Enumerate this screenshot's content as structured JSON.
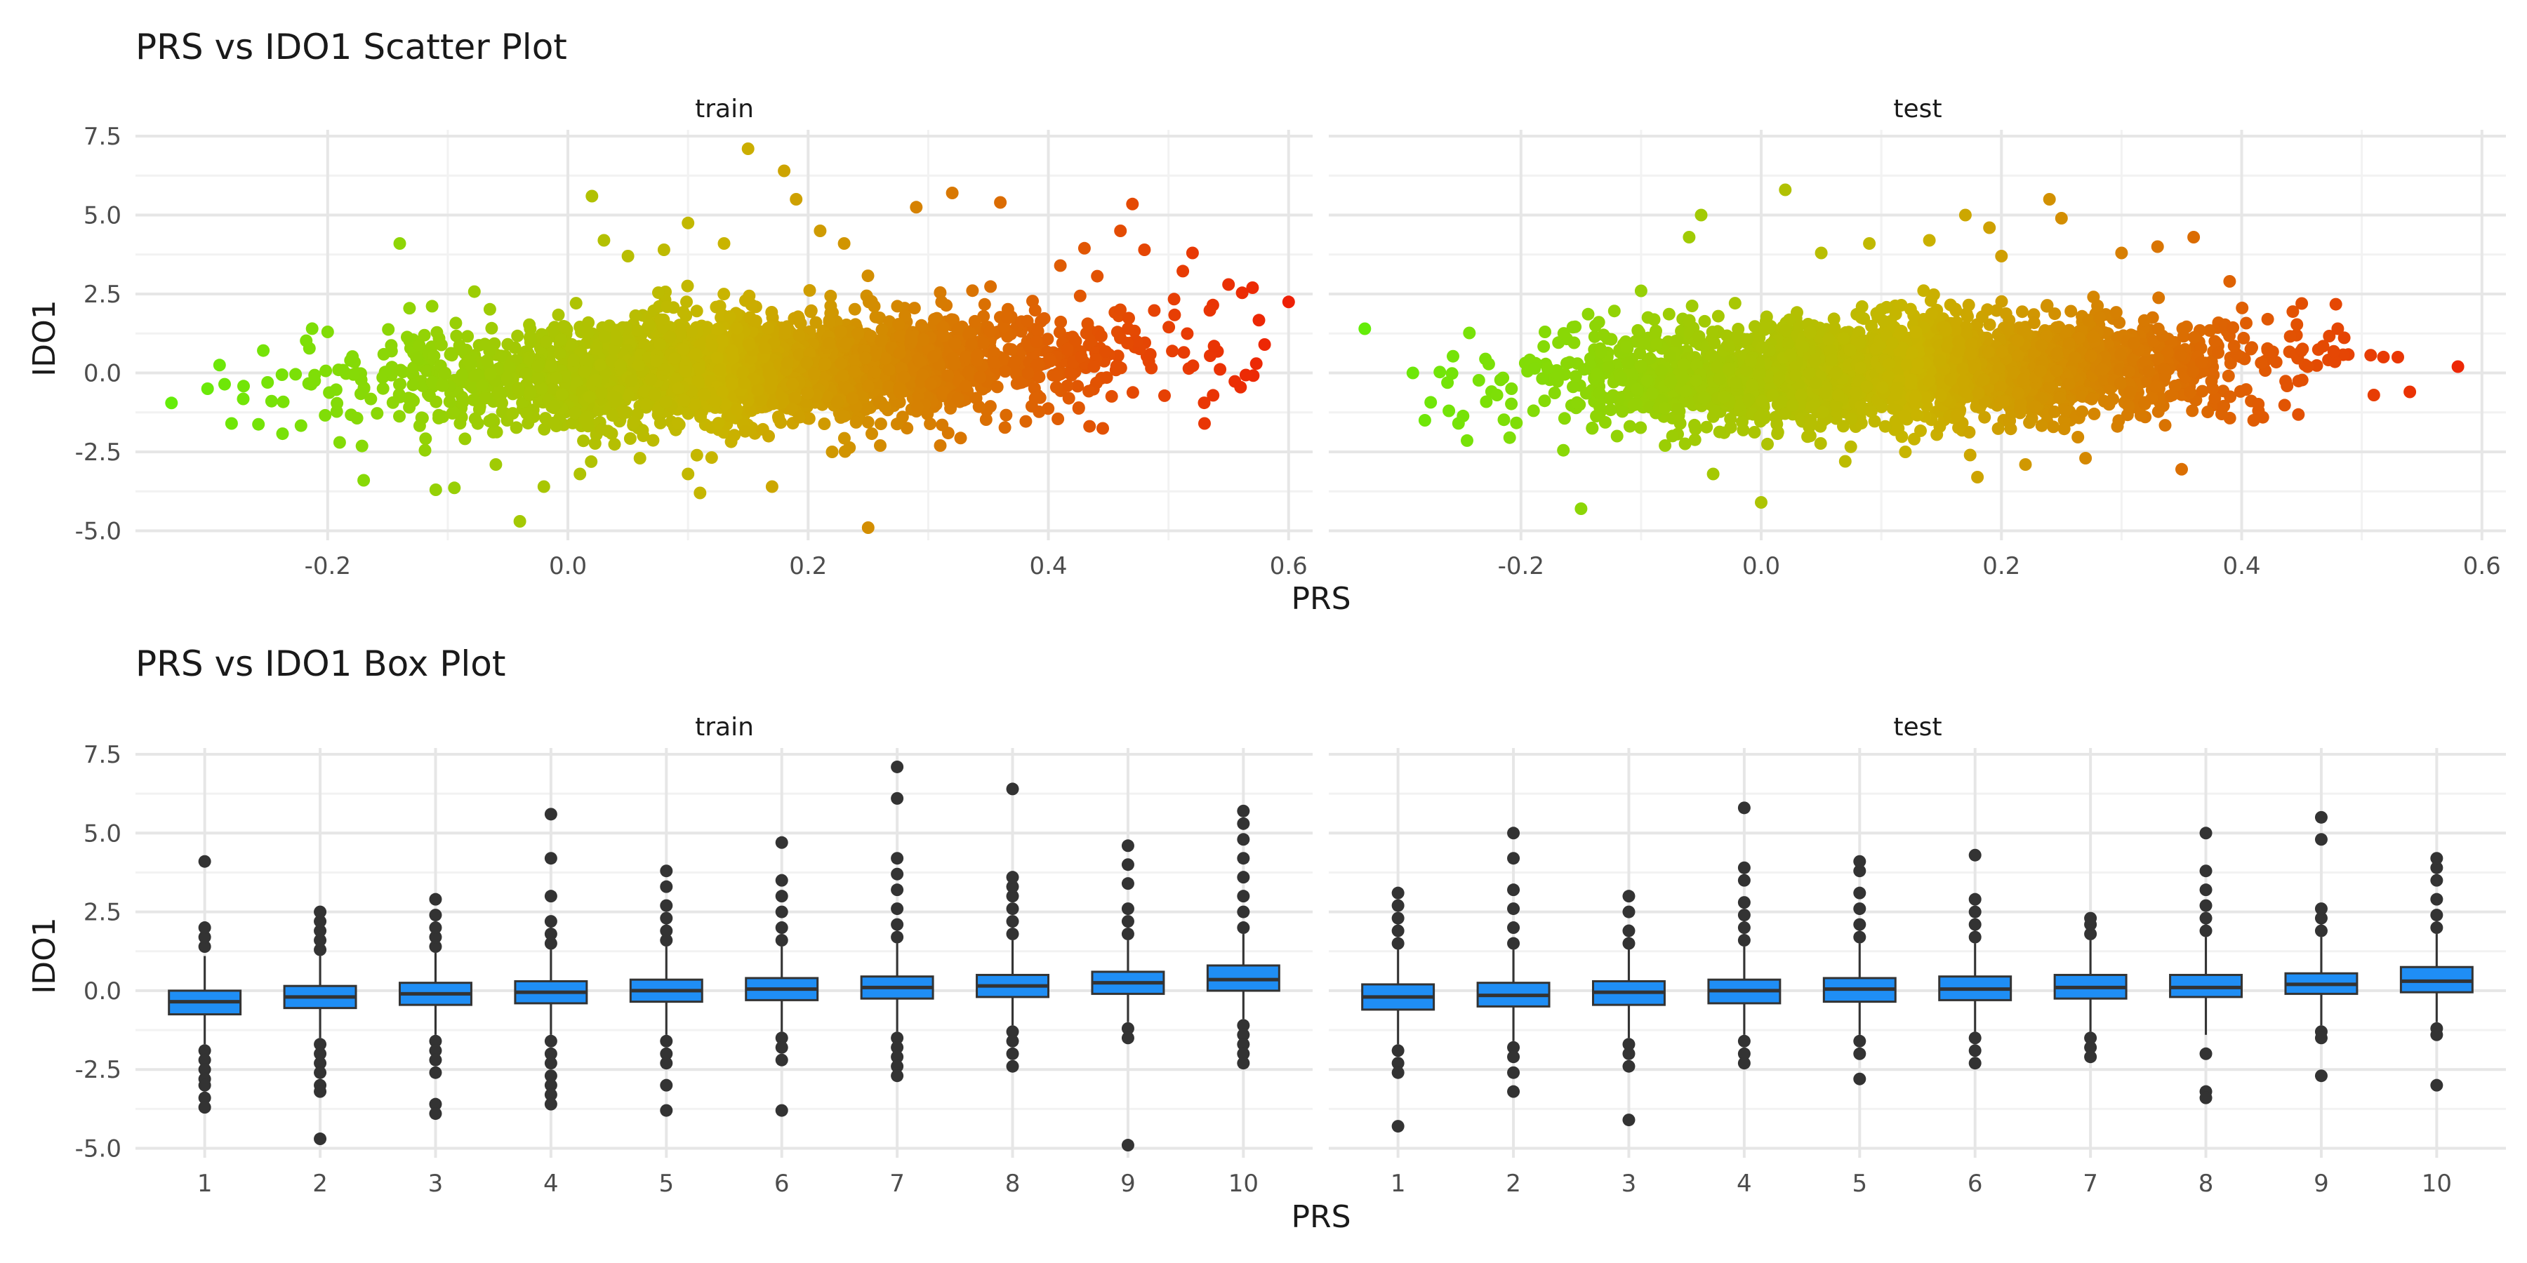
{
  "figure": {
    "sections": [
      {
        "title": "PRS vs IDO1 Scatter Plot",
        "xlabel": "PRS",
        "ylabel": "IDO1"
      },
      {
        "title": "PRS vs IDO1 Box Plot",
        "xlabel": "PRS",
        "ylabel": "IDO1"
      }
    ]
  },
  "colors": {
    "gradient_low": "#5ef00a",
    "gradient_mid": "#c9b400",
    "gradient_high": "#f01a05",
    "box_fill": "#1f8ef5",
    "box_stroke": "#333333",
    "outlier": "#333333",
    "grid_major": "#e6e6e6",
    "grid_minor": "#f2f2f2"
  },
  "chart_data": [
    {
      "type": "scatter",
      "title": "PRS vs IDO1 Scatter Plot",
      "xlabel": "PRS",
      "ylabel": "IDO1",
      "xlim": [
        -0.36,
        0.62
      ],
      "ylim": [
        -5.3,
        7.7
      ],
      "x_ticks": [
        -0.2,
        0.0,
        0.2,
        0.4,
        0.6
      ],
      "x_tick_labels": [
        "-0.2",
        "0.0",
        "0.2",
        "0.4",
        "0.6"
      ],
      "y_ticks": [
        -5.0,
        -2.5,
        0.0,
        2.5,
        5.0,
        7.5
      ],
      "y_tick_labels": [
        "-5.0",
        "-2.5",
        "0.0",
        "2.5",
        "5.0",
        "7.5"
      ],
      "color_by": "x",
      "grid": true,
      "legend": "none",
      "panels": [
        {
          "name": "train",
          "trend": {
            "intercept": -0.02,
            "slope": 1.1
          },
          "bulk": {
            "x_center": 0.15,
            "x_sd": 0.15,
            "x_min": -0.3,
            "x_max": 0.58,
            "y_sd": 0.85
          },
          "points": [
            [
              -0.33,
              -0.95
            ],
            [
              -0.3,
              -0.5
            ],
            [
              -0.29,
              0.25
            ],
            [
              -0.28,
              -1.6
            ],
            [
              -0.25,
              -0.3
            ],
            [
              -0.2,
              1.3
            ],
            [
              -0.19,
              -2.2
            ],
            [
              -0.17,
              -3.4
            ],
            [
              -0.14,
              4.1
            ],
            [
              -0.11,
              -3.7
            ],
            [
              -0.06,
              -2.9
            ],
            [
              -0.04,
              -4.7
            ],
            [
              -0.02,
              -3.6
            ],
            [
              0.01,
              -3.2
            ],
            [
              0.02,
              5.6
            ],
            [
              0.03,
              4.2
            ],
            [
              0.05,
              3.7
            ],
            [
              0.06,
              -2.7
            ],
            [
              0.08,
              3.9
            ],
            [
              0.1,
              -3.2
            ],
            [
              0.1,
              4.75
            ],
            [
              0.11,
              -3.8
            ],
            [
              0.13,
              4.1
            ],
            [
              0.15,
              7.1
            ],
            [
              0.17,
              -3.6
            ],
            [
              0.18,
              6.4
            ],
            [
              0.19,
              5.5
            ],
            [
              0.21,
              4.5
            ],
            [
              0.22,
              -2.5
            ],
            [
              0.23,
              4.1
            ],
            [
              0.25,
              -4.9
            ],
            [
              0.26,
              -2.3
            ],
            [
              0.29,
              5.25
            ],
            [
              0.31,
              -2.3
            ],
            [
              0.32,
              5.7
            ],
            [
              0.36,
              5.4
            ],
            [
              0.41,
              3.4
            ],
            [
              0.43,
              3.95
            ],
            [
              0.46,
              4.5
            ],
            [
              0.47,
              5.35
            ],
            [
              0.48,
              3.9
            ],
            [
              0.52,
              3.8
            ],
            [
              0.53,
              -1.6
            ],
            [
              0.55,
              2.8
            ],
            [
              0.56,
              -0.45
            ],
            [
              0.57,
              2.7
            ],
            [
              0.58,
              0.9
            ],
            [
              0.6,
              2.25
            ]
          ]
        },
        {
          "name": "test",
          "trend": {
            "intercept": -0.03,
            "slope": 0.85
          },
          "bulk": {
            "x_center": 0.12,
            "x_sd": 0.14,
            "x_min": -0.28,
            "x_max": 0.52,
            "y_sd": 0.8
          },
          "points": [
            [
              -0.33,
              1.4
            ],
            [
              -0.29,
              0.0
            ],
            [
              -0.28,
              -1.5
            ],
            [
              -0.26,
              -1.2
            ],
            [
              -0.22,
              -0.7
            ],
            [
              -0.18,
              1.3
            ],
            [
              -0.15,
              -4.3
            ],
            [
              -0.12,
              -2.0
            ],
            [
              -0.1,
              2.6
            ],
            [
              -0.08,
              -2.3
            ],
            [
              -0.06,
              4.3
            ],
            [
              -0.05,
              5.0
            ],
            [
              -0.04,
              -3.2
            ],
            [
              0.0,
              -4.1
            ],
            [
              0.02,
              5.8
            ],
            [
              0.05,
              3.8
            ],
            [
              0.07,
              -2.8
            ],
            [
              0.09,
              4.1
            ],
            [
              0.12,
              -2.5
            ],
            [
              0.14,
              4.2
            ],
            [
              0.17,
              5.0
            ],
            [
              0.18,
              -3.3
            ],
            [
              0.19,
              4.6
            ],
            [
              0.2,
              3.7
            ],
            [
              0.22,
              -2.9
            ],
            [
              0.24,
              5.5
            ],
            [
              0.25,
              4.9
            ],
            [
              0.27,
              -2.7
            ],
            [
              0.3,
              3.8
            ],
            [
              0.33,
              4.0
            ],
            [
              0.35,
              -3.05
            ],
            [
              0.36,
              4.3
            ],
            [
              0.39,
              2.9
            ],
            [
              0.41,
              -1.5
            ],
            [
              0.45,
              2.2
            ],
            [
              0.48,
              1.4
            ],
            [
              0.51,
              -0.7
            ],
            [
              0.53,
              0.5
            ],
            [
              0.54,
              -0.6
            ],
            [
              0.58,
              0.2
            ]
          ]
        }
      ]
    },
    {
      "type": "box",
      "title": "PRS vs IDO1 Box Plot",
      "xlabel": "PRS",
      "ylabel": "IDO1",
      "categories": [
        "1",
        "2",
        "3",
        "4",
        "5",
        "6",
        "7",
        "8",
        "9",
        "10"
      ],
      "ylim": [
        -5.3,
        7.7
      ],
      "y_ticks": [
        -5.0,
        -2.5,
        0.0,
        2.5,
        5.0,
        7.5
      ],
      "y_tick_labels": [
        "-5.0",
        "-2.5",
        "0.0",
        "2.5",
        "5.0",
        "7.5"
      ],
      "grid": true,
      "legend": "none",
      "panels": [
        {
          "name": "train",
          "boxes": [
            {
              "q1": -0.75,
              "median": -0.35,
              "q3": 0.0,
              "whisker_low": -1.7,
              "whisker_high": 1.1,
              "outliers": [
                -1.9,
                -2.2,
                -2.5,
                -2.8,
                -3.0,
                -3.4,
                -3.7,
                1.4,
                1.7,
                2.0,
                4.1
              ]
            },
            {
              "q1": -0.55,
              "median": -0.2,
              "q3": 0.15,
              "whisker_low": -1.5,
              "whisker_high": 1.1,
              "outliers": [
                -1.7,
                -2.0,
                -2.3,
                -2.6,
                -3.0,
                -3.2,
                -4.7,
                1.3,
                1.6,
                1.9,
                2.2,
                2.5
              ]
            },
            {
              "q1": -0.45,
              "median": -0.1,
              "q3": 0.25,
              "whisker_low": -1.4,
              "whisker_high": 1.2,
              "outliers": [
                -1.6,
                -1.9,
                -2.2,
                -2.6,
                -3.6,
                -3.9,
                1.4,
                1.7,
                2.0,
                2.4,
                2.9
              ]
            },
            {
              "q1": -0.4,
              "median": -0.05,
              "q3": 0.3,
              "whisker_low": -1.4,
              "whisker_high": 1.3,
              "outliers": [
                -1.6,
                -2.0,
                -2.3,
                -2.7,
                -3.0,
                -3.3,
                -3.6,
                1.5,
                1.8,
                2.2,
                3.0,
                4.2,
                5.6
              ]
            },
            {
              "q1": -0.35,
              "median": 0.0,
              "q3": 0.35,
              "whisker_low": -1.4,
              "whisker_high": 1.4,
              "outliers": [
                -1.6,
                -2.0,
                -2.3,
                -3.0,
                -3.8,
                1.6,
                1.9,
                2.3,
                2.7,
                3.3,
                3.8
              ]
            },
            {
              "q1": -0.3,
              "median": 0.05,
              "q3": 0.4,
              "whisker_low": -1.3,
              "whisker_high": 1.4,
              "outliers": [
                -1.5,
                -1.8,
                -2.2,
                -3.8,
                1.6,
                2.0,
                2.5,
                3.0,
                3.5,
                4.7
              ]
            },
            {
              "q1": -0.25,
              "median": 0.1,
              "q3": 0.45,
              "whisker_low": -1.3,
              "whisker_high": 1.5,
              "outliers": [
                -1.5,
                -1.8,
                -2.1,
                -2.4,
                -2.7,
                1.7,
                2.1,
                2.6,
                3.2,
                3.7,
                4.2,
                6.1,
                7.1
              ]
            },
            {
              "q1": -0.2,
              "median": 0.15,
              "q3": 0.5,
              "whisker_low": -1.1,
              "whisker_high": 1.6,
              "outliers": [
                -1.3,
                -1.6,
                -2.0,
                -2.4,
                1.8,
                2.2,
                2.6,
                3.0,
                3.3,
                3.6,
                6.4
              ]
            },
            {
              "q1": -0.1,
              "median": 0.25,
              "q3": 0.6,
              "whisker_low": -1.0,
              "whisker_high": 1.6,
              "outliers": [
                -1.2,
                -1.5,
                -4.9,
                1.8,
                2.2,
                2.6,
                3.4,
                4.0,
                4.6
              ]
            },
            {
              "q1": 0.0,
              "median": 0.35,
              "q3": 0.8,
              "whisker_low": -0.9,
              "whisker_high": 1.8,
              "outliers": [
                -1.1,
                -1.4,
                -1.7,
                -2.0,
                -2.3,
                2.0,
                2.5,
                3.0,
                3.6,
                4.2,
                4.8,
                5.3,
                5.7
              ]
            }
          ]
        },
        {
          "name": "test",
          "boxes": [
            {
              "q1": -0.6,
              "median": -0.2,
              "q3": 0.2,
              "whisker_low": -1.7,
              "whisker_high": 1.3,
              "outliers": [
                -1.9,
                -2.3,
                -2.6,
                -4.3,
                1.5,
                1.9,
                2.3,
                2.7,
                3.1
              ]
            },
            {
              "q1": -0.5,
              "median": -0.15,
              "q3": 0.25,
              "whisker_low": -1.6,
              "whisker_high": 1.3,
              "outliers": [
                -1.8,
                -2.1,
                -2.6,
                -3.2,
                1.5,
                2.0,
                2.6,
                3.2,
                4.2,
                5.0
              ]
            },
            {
              "q1": -0.45,
              "median": -0.05,
              "q3": 0.3,
              "whisker_low": -1.5,
              "whisker_high": 1.3,
              "outliers": [
                -1.7,
                -2.0,
                -2.4,
                -4.1,
                1.5,
                1.9,
                2.5,
                3.0
              ]
            },
            {
              "q1": -0.4,
              "median": 0.0,
              "q3": 0.35,
              "whisker_low": -1.4,
              "whisker_high": 1.4,
              "outliers": [
                -1.6,
                -2.0,
                -2.3,
                1.6,
                2.0,
                2.4,
                2.8,
                3.5,
                3.9,
                5.8
              ]
            },
            {
              "q1": -0.35,
              "median": 0.05,
              "q3": 0.4,
              "whisker_low": -1.4,
              "whisker_high": 1.5,
              "outliers": [
                -1.6,
                -2.0,
                -2.8,
                1.7,
                2.1,
                2.6,
                3.1,
                3.8,
                4.1
              ]
            },
            {
              "q1": -0.3,
              "median": 0.05,
              "q3": 0.45,
              "whisker_low": -1.3,
              "whisker_high": 1.5,
              "outliers": [
                -1.5,
                -1.9,
                -2.3,
                1.7,
                2.1,
                2.5,
                2.9,
                4.3
              ]
            },
            {
              "q1": -0.25,
              "median": 0.1,
              "q3": 0.5,
              "whisker_low": -1.3,
              "whisker_high": 1.6,
              "outliers": [
                -1.5,
                -1.8,
                -2.1,
                1.8,
                2.1,
                2.3
              ]
            },
            {
              "q1": -0.2,
              "median": 0.1,
              "q3": 0.5,
              "whisker_low": -1.4,
              "whisker_high": 1.7,
              "outliers": [
                -2.0,
                -3.2,
                -3.4,
                1.9,
                2.3,
                2.7,
                3.2,
                3.8,
                5.0
              ]
            },
            {
              "q1": -0.1,
              "median": 0.2,
              "q3": 0.55,
              "whisker_low": -1.1,
              "whisker_high": 1.7,
              "outliers": [
                -1.3,
                -1.5,
                -2.7,
                1.9,
                2.3,
                2.6,
                4.8,
                5.5
              ]
            },
            {
              "q1": -0.05,
              "median": 0.3,
              "q3": 0.75,
              "whisker_low": -1.0,
              "whisker_high": 1.8,
              "outliers": [
                -1.2,
                -1.4,
                -3.0,
                2.0,
                2.4,
                2.9,
                3.5,
                3.9,
                4.2
              ]
            }
          ]
        }
      ]
    }
  ]
}
